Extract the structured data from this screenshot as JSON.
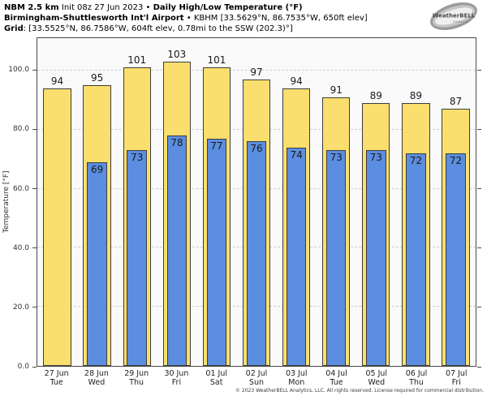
{
  "header": {
    "line1": {
      "model_bold": "NBM 2.5 km",
      "init": " Init 08z 27 Jun 2023 • ",
      "title_bold": "Daily High/Low Temperature (°F)"
    },
    "line2": {
      "station_bold": "Birmingham-Shuttlesworth Int'l Airport",
      "rest": " • KBHM [33.5629°N, 86.7535°W, 650ft elev]"
    },
    "line3": {
      "label_bold": "Grid",
      "rest": ": [33.5525°N, 86.7586°W, 604ft elev, 0.78mi to the SSW (202.3)°]"
    }
  },
  "logo": {
    "brand": "WeatherBELL",
    "sub": "Analytics LLC"
  },
  "footer": "© 2023 WeatherBELL Analytics, LLC. All rights reserved. License required for commercial distribution.",
  "chart_data": {
    "type": "bar",
    "title": "NBM 2.5 km Daily High/Low Temperature (°F) — KBHM Birmingham",
    "ylabel": "Temperature [°F]",
    "ylim": [
      0,
      111
    ],
    "yticks": [
      0,
      20,
      40,
      60,
      80,
      100
    ],
    "ytick_labels": [
      "0.0",
      "20.0",
      "40.0",
      "60.0",
      "80.0",
      "100.0"
    ],
    "grid": "horizontal-dashed",
    "legend": "none",
    "categories": [
      {
        "date": "27 Jun",
        "day": "Tue"
      },
      {
        "date": "28 Jun",
        "day": "Wed"
      },
      {
        "date": "29 Jun",
        "day": "Thu"
      },
      {
        "date": "30 Jun",
        "day": "Fri"
      },
      {
        "date": "01 Jul",
        "day": "Sat"
      },
      {
        "date": "02 Jul",
        "day": "Sun"
      },
      {
        "date": "03 Jul",
        "day": "Mon"
      },
      {
        "date": "04 Jul",
        "day": "Tue"
      },
      {
        "date": "05 Jul",
        "day": "Wed"
      },
      {
        "date": "06 Jul",
        "day": "Thu"
      },
      {
        "date": "07 Jul",
        "day": "Fri"
      }
    ],
    "series": [
      {
        "name": "Daily High",
        "color": "#fbdf6e",
        "values": [
          94,
          95,
          101,
          103,
          101,
          97,
          94,
          91,
          89,
          89,
          87
        ]
      },
      {
        "name": "Daily Low",
        "color": "#5b8de0",
        "values": [
          null,
          69,
          73,
          78,
          77,
          76,
          74,
          73,
          73,
          72,
          72
        ]
      }
    ]
  }
}
